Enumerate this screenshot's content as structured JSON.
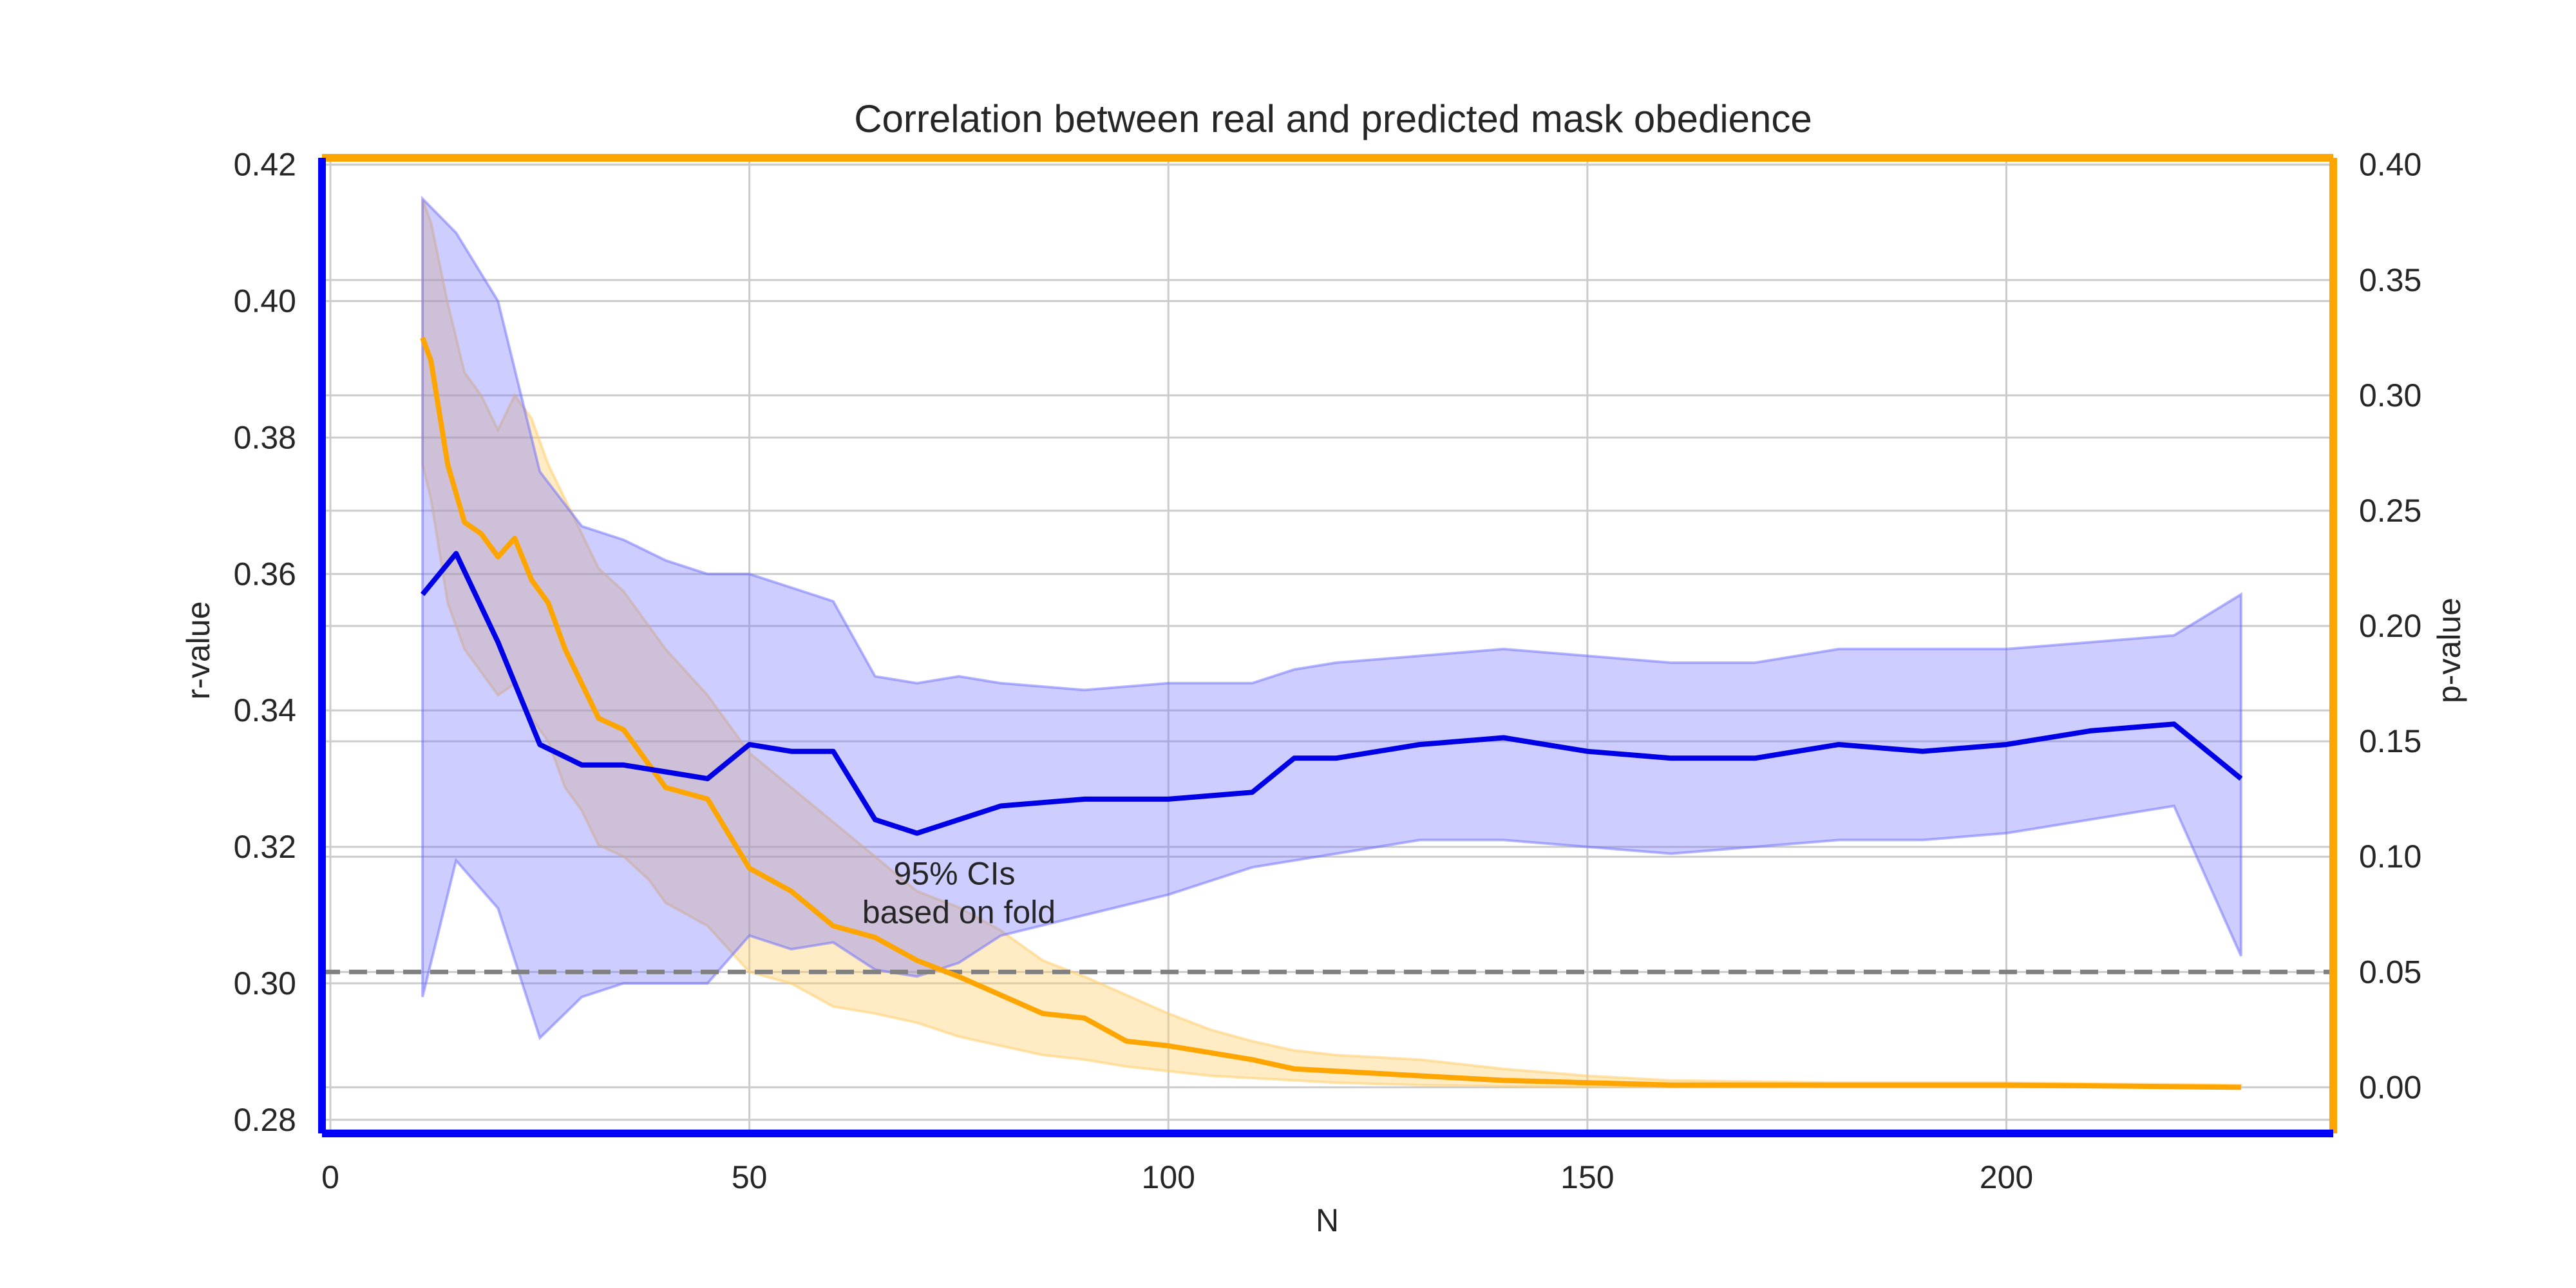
{
  "chart_data": {
    "type": "line",
    "title": "Correlation between real and predicted mask obedience",
    "xlabel": "N",
    "ylabel_left": "r-value",
    "ylabel_right": "p-value",
    "xlim": [
      -1,
      239
    ],
    "ylim_left": [
      0.278,
      0.421
    ],
    "ylim_right": [
      -0.02,
      0.403
    ],
    "xticks": [
      0,
      50,
      100,
      150,
      200
    ],
    "yticks_left": [
      0.28,
      0.3,
      0.32,
      0.34,
      0.36,
      0.38,
      0.4,
      0.42
    ],
    "yticks_left_labels": [
      "0.28",
      "0.30",
      "0.32",
      "0.34",
      "0.36",
      "0.38",
      "0.40",
      "0.42"
    ],
    "yticks_right": [
      0.0,
      0.05,
      0.1,
      0.15,
      0.2,
      0.25,
      0.3,
      0.35,
      0.4
    ],
    "yticks_right_labels": [
      "0.00",
      "0.05",
      "0.10",
      "0.15",
      "0.20",
      "0.25",
      "0.30",
      "0.35",
      "0.40"
    ],
    "grid": true,
    "annotation": [
      "95% CIs",
      "based on fold"
    ],
    "annotation_position": [
      75,
      0.3145
    ],
    "reference_line": {
      "axis": "right",
      "value": 0.05,
      "style": "dashed",
      "color": "#808080"
    },
    "colors": {
      "r_series": "#0000e6",
      "p_series": "#ffa500",
      "left_spine": "#0000ff",
      "right_spine": "#ffa500",
      "bottom_spine": "#0000ff",
      "top_spine": "#ffa500",
      "r_band": "#6666ff",
      "p_band": "#ffcc66"
    },
    "series": [
      {
        "axis": "left",
        "x": [
          11,
          15,
          20,
          25,
          30,
          35,
          40,
          45,
          50,
          55,
          60,
          65,
          70,
          75,
          80,
          90,
          100,
          110,
          115,
          120,
          130,
          140,
          150,
          160,
          170,
          180,
          190,
          200,
          210,
          220,
          228
        ],
        "values": [
          0.357,
          0.363,
          0.35,
          0.335,
          0.332,
          0.332,
          0.331,
          0.33,
          0.335,
          0.334,
          0.334,
          0.324,
          0.322,
          0.324,
          0.326,
          0.327,
          0.327,
          0.328,
          0.333,
          0.333,
          0.335,
          0.336,
          0.334,
          0.333,
          0.333,
          0.335,
          0.334,
          0.335,
          0.337,
          0.338,
          0.33
        ],
        "upper": [
          0.415,
          0.41,
          0.4,
          0.375,
          0.367,
          0.365,
          0.362,
          0.36,
          0.36,
          0.358,
          0.356,
          0.345,
          0.344,
          0.345,
          0.344,
          0.343,
          0.344,
          0.344,
          0.346,
          0.347,
          0.348,
          0.349,
          0.348,
          0.347,
          0.347,
          0.349,
          0.349,
          0.349,
          0.35,
          0.351,
          0.357
        ],
        "lower": [
          0.298,
          0.318,
          0.311,
          0.292,
          0.298,
          0.3,
          0.3,
          0.3,
          0.307,
          0.305,
          0.306,
          0.302,
          0.301,
          0.303,
          0.307,
          0.31,
          0.313,
          0.317,
          0.318,
          0.319,
          0.321,
          0.321,
          0.32,
          0.319,
          0.32,
          0.321,
          0.321,
          0.322,
          0.324,
          0.326,
          0.304
        ]
      },
      {
        "axis": "right",
        "x": [
          11,
          12,
          14,
          16,
          18,
          20,
          22,
          24,
          26,
          28,
          30,
          32,
          35,
          38,
          40,
          45,
          50,
          55,
          60,
          65,
          70,
          75,
          80,
          85,
          90,
          95,
          100,
          105,
          110,
          115,
          120,
          130,
          140,
          150,
          160,
          180,
          200,
          228
        ],
        "values": [
          0.325,
          0.315,
          0.27,
          0.245,
          0.24,
          0.23,
          0.238,
          0.22,
          0.21,
          0.19,
          0.175,
          0.16,
          0.155,
          0.14,
          0.13,
          0.125,
          0.095,
          0.085,
          0.07,
          0.065,
          0.055,
          0.048,
          0.04,
          0.032,
          0.03,
          0.02,
          0.018,
          0.015,
          0.012,
          0.008,
          0.007,
          0.005,
          0.003,
          0.002,
          0.001,
          0.001,
          0.001,
          0.0
        ],
        "upper": [
          0.385,
          0.375,
          0.34,
          0.31,
          0.3,
          0.285,
          0.3,
          0.29,
          0.27,
          0.255,
          0.24,
          0.225,
          0.215,
          0.2,
          0.19,
          0.17,
          0.145,
          0.13,
          0.115,
          0.1,
          0.085,
          0.078,
          0.068,
          0.055,
          0.048,
          0.04,
          0.032,
          0.025,
          0.02,
          0.016,
          0.014,
          0.012,
          0.008,
          0.005,
          0.003,
          0.002,
          0.002,
          0.001
        ],
        "lower": [
          0.27,
          0.255,
          0.21,
          0.19,
          0.18,
          0.17,
          0.175,
          0.16,
          0.15,
          0.13,
          0.12,
          0.105,
          0.1,
          0.09,
          0.08,
          0.07,
          0.05,
          0.045,
          0.035,
          0.032,
          0.028,
          0.022,
          0.018,
          0.014,
          0.012,
          0.009,
          0.007,
          0.005,
          0.004,
          0.003,
          0.002,
          0.001,
          0.0005,
          0.0003,
          0.0002,
          0.0001,
          0.0001,
          0.0
        ]
      }
    ]
  }
}
